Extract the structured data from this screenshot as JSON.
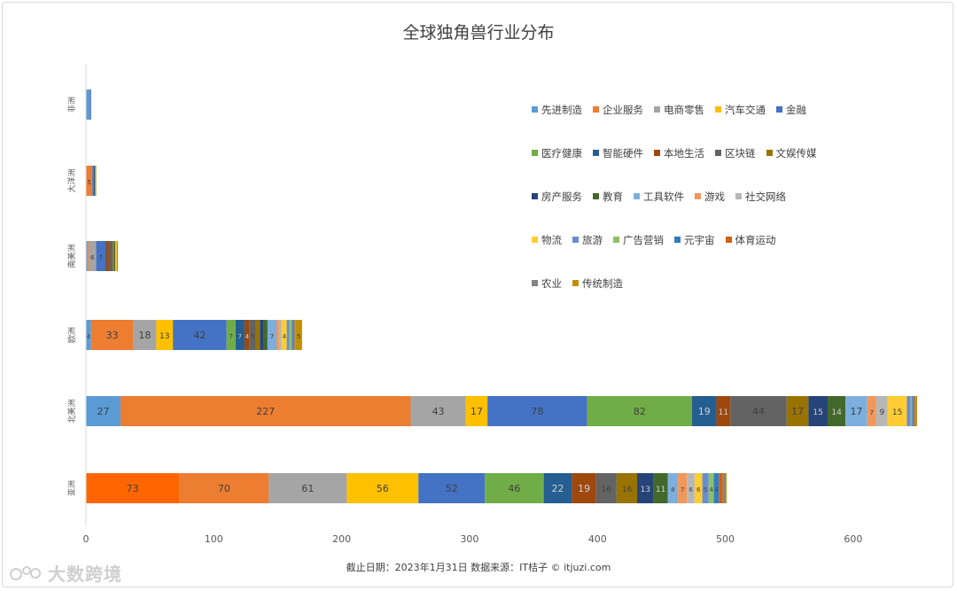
{
  "chart_data": {
    "type": "bar",
    "orientation": "horizontal",
    "stacked": true,
    "title": "全球独角兽行业分布",
    "xlim": [
      0,
      650
    ],
    "x_ticks": [
      0,
      100,
      200,
      300,
      400,
      500,
      600
    ],
    "categories": [
      "亚洲",
      "北美洲",
      "欧洲",
      "南美洲",
      "大洋洲",
      "非洲"
    ],
    "legend_position": "right",
    "grid": false,
    "series": [
      {
        "name": "先进制造",
        "color": "#5b9bd5",
        "values": [
          73,
          27,
          4,
          1,
          0,
          3
        ]
      },
      {
        "name": "企业服务",
        "color": "#ed7d31",
        "values": [
          70,
          227,
          33,
          1,
          5,
          0
        ]
      },
      {
        "name": "电商零售",
        "color": "#a5a5a5",
        "values": [
          61,
          43,
          18,
          6,
          0,
          0
        ]
      },
      {
        "name": "汽车交通",
        "color": "#ffc000",
        "values": [
          56,
          17,
          13,
          0,
          0,
          0
        ]
      },
      {
        "name": "金融",
        "color": "#4472c4",
        "values": [
          52,
          78,
          42,
          7,
          1,
          1
        ]
      },
      {
        "name": "医疗健康",
        "color": "#70ad47",
        "values": [
          46,
          82,
          7,
          0,
          0,
          0
        ]
      },
      {
        "name": "智能硬件",
        "color": "#255e91",
        "values": [
          22,
          19,
          7,
          1,
          1,
          0
        ]
      },
      {
        "name": "本地生活",
        "color": "#9e480e",
        "values": [
          19,
          11,
          4,
          2,
          0,
          0
        ]
      },
      {
        "name": "区块链",
        "color": "#636363",
        "values": [
          16,
          44,
          5,
          3,
          0,
          0
        ]
      },
      {
        "name": "文娱传媒",
        "color": "#997300",
        "values": [
          16,
          17,
          3,
          1,
          0,
          0
        ]
      },
      {
        "name": "房产服务",
        "color": "#264478",
        "values": [
          13,
          15,
          3,
          0,
          0,
          0
        ]
      },
      {
        "name": "教育",
        "color": "#43682b",
        "values": [
          11,
          14,
          3,
          1,
          0,
          0
        ]
      },
      {
        "name": "工具软件",
        "color": "#7cafdd",
        "values": [
          8,
          17,
          7,
          0,
          0,
          0
        ]
      },
      {
        "name": "游戏",
        "color": "#f1975a",
        "values": [
          7,
          7,
          2,
          0,
          0,
          0
        ]
      },
      {
        "name": "社交网络",
        "color": "#b7b7b7",
        "values": [
          6,
          9,
          2,
          0,
          0,
          0
        ]
      },
      {
        "name": "物流",
        "color": "#ffcd33",
        "values": [
          6,
          15,
          4,
          1,
          0,
          0
        ]
      },
      {
        "name": "旅游",
        "color": "#698ed0",
        "values": [
          5,
          3,
          2,
          0,
          0,
          0
        ]
      },
      {
        "name": "广告营销",
        "color": "#8cc168",
        "values": [
          4,
          1,
          2,
          0,
          0,
          0
        ]
      },
      {
        "name": "元宇宙",
        "color": "#327dc2",
        "values": [
          4,
          1,
          1,
          0,
          0,
          0
        ]
      },
      {
        "name": "体育运动",
        "color": "#d26012",
        "values": [
          3,
          1,
          1,
          0,
          0,
          0
        ]
      },
      {
        "name": "农业",
        "color": "#848484",
        "values": [
          2,
          1,
          1,
          0,
          0,
          0
        ]
      },
      {
        "name": "传统制造",
        "color": "#bf9000",
        "values": [
          1,
          1,
          5,
          1,
          1,
          0
        ]
      }
    ],
    "overrides": [
      {
        "category": 0,
        "series": 0,
        "color": "#ff6600"
      }
    ]
  },
  "legend_rows": [
    [
      "先进制造",
      "企业服务",
      "电商零售",
      "汽车交通",
      "金融"
    ],
    [
      "医疗健康",
      "智能硬件",
      "本地生活",
      "区块链",
      "文娱传媒"
    ],
    [
      "房产服务",
      "教育",
      "工具软件",
      "游戏",
      "社交网络"
    ],
    [
      "物流",
      "旅游",
      "广告营销",
      "元宇宙",
      "体育运动"
    ],
    [
      "农业",
      "传统制造"
    ]
  ],
  "footer": {
    "note": "截止日期：2023年1月31日    数据来源：IT桔子 © itjuzi.com",
    "logo_text": "大数跨境"
  }
}
